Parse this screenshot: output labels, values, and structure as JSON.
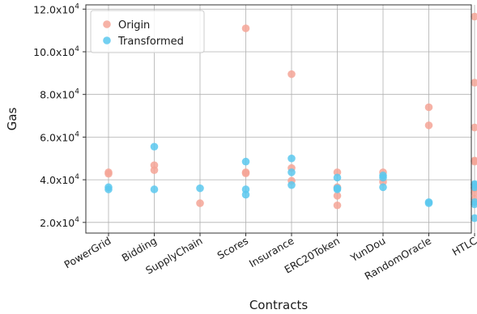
{
  "chart_data": {
    "type": "scatter",
    "xlabel": "Contracts",
    "ylabel": "Gas",
    "categories": [
      "PowerGrid",
      "Bidding",
      "SupplyChain",
      "Scores",
      "Insurance",
      "ERC20Token",
      "YunDou",
      "RandomOracle",
      "HTLC"
    ],
    "ylim": [
      15000,
      122000
    ],
    "yticks": [
      20000,
      40000,
      60000,
      80000,
      100000,
      120000
    ],
    "ytick_labels": [
      "2.0x10",
      "4.0x10",
      "6.0x10",
      "8.0x10",
      "10.0x10",
      "12.0x10"
    ],
    "ytick_exponent": "4",
    "grid": true,
    "legend_position": "top-left",
    "series": [
      {
        "name": "Origin",
        "color": "#f4a596",
        "points": [
          {
            "x": "PowerGrid",
            "y": 43500
          },
          {
            "x": "PowerGrid",
            "y": 42800
          },
          {
            "x": "Bidding",
            "y": 46800
          },
          {
            "x": "Bidding",
            "y": 44500
          },
          {
            "x": "SupplyChain",
            "y": 29000
          },
          {
            "x": "Scores",
            "y": 111000
          },
          {
            "x": "Scores",
            "y": 43500
          },
          {
            "x": "Scores",
            "y": 43000
          },
          {
            "x": "Insurance",
            "y": 89500
          },
          {
            "x": "Insurance",
            "y": 45500
          },
          {
            "x": "Insurance",
            "y": 39500
          },
          {
            "x": "ERC20Token",
            "y": 43500
          },
          {
            "x": "ERC20Token",
            "y": 36500
          },
          {
            "x": "ERC20Token",
            "y": 32500
          },
          {
            "x": "ERC20Token",
            "y": 28000
          },
          {
            "x": "YunDou",
            "y": 43500
          },
          {
            "x": "YunDou",
            "y": 39000
          },
          {
            "x": "RandomOracle",
            "y": 74000
          },
          {
            "x": "RandomOracle",
            "y": 65500
          },
          {
            "x": "HTLC",
            "y": 116500
          },
          {
            "x": "HTLC",
            "y": 85500
          },
          {
            "x": "HTLC",
            "y": 64500
          },
          {
            "x": "HTLC",
            "y": 49000
          },
          {
            "x": "HTLC",
            "y": 48500
          },
          {
            "x": "HTLC",
            "y": 36000
          },
          {
            "x": "HTLC",
            "y": 34000
          },
          {
            "x": "HTLC",
            "y": 31000
          }
        ]
      },
      {
        "name": "Transformed",
        "color": "#5bc8ef",
        "points": [
          {
            "x": "PowerGrid",
            "y": 36500
          },
          {
            "x": "PowerGrid",
            "y": 35500
          },
          {
            "x": "Bidding",
            "y": 55500
          },
          {
            "x": "Bidding",
            "y": 35500
          },
          {
            "x": "SupplyChain",
            "y": 36000
          },
          {
            "x": "Scores",
            "y": 48500
          },
          {
            "x": "Scores",
            "y": 35500
          },
          {
            "x": "Scores",
            "y": 33000
          },
          {
            "x": "Insurance",
            "y": 50000
          },
          {
            "x": "Insurance",
            "y": 43500
          },
          {
            "x": "Insurance",
            "y": 37500
          },
          {
            "x": "ERC20Token",
            "y": 41000
          },
          {
            "x": "ERC20Token",
            "y": 36000
          },
          {
            "x": "ERC20Token",
            "y": 35500
          },
          {
            "x": "YunDou",
            "y": 42000
          },
          {
            "x": "YunDou",
            "y": 41000
          },
          {
            "x": "YunDou",
            "y": 36500
          },
          {
            "x": "RandomOracle",
            "y": 29500
          },
          {
            "x": "RandomOracle",
            "y": 29000
          },
          {
            "x": "HTLC",
            "y": 38000
          },
          {
            "x": "HTLC",
            "y": 37500
          },
          {
            "x": "HTLC",
            "y": 36500
          },
          {
            "x": "HTLC",
            "y": 29500
          },
          {
            "x": "HTLC",
            "y": 28500
          },
          {
            "x": "HTLC",
            "y": 22000
          }
        ]
      }
    ]
  }
}
